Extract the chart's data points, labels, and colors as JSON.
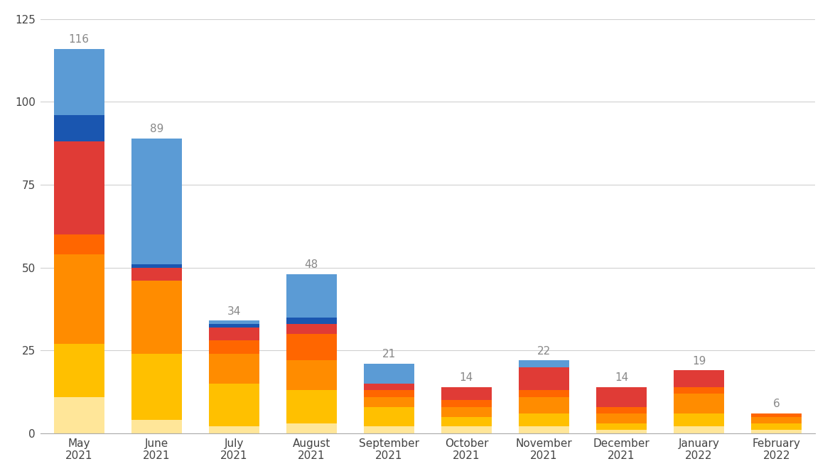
{
  "categories": [
    "May\n2021",
    "June\n2021",
    "July\n2021",
    "August\n2021",
    "September\n2021",
    "October\n2021",
    "November\n2021",
    "December\n2021",
    "January\n2022",
    "February\n2022"
  ],
  "totals": [
    116,
    89,
    34,
    48,
    21,
    14,
    22,
    14,
    19,
    6
  ],
  "segments": {
    "light_yellow": [
      11,
      4,
      2,
      3,
      2,
      2,
      2,
      1,
      2,
      1
    ],
    "yellow": [
      16,
      20,
      13,
      10,
      6,
      3,
      4,
      2,
      4,
      2
    ],
    "orange": [
      27,
      22,
      9,
      9,
      3,
      3,
      5,
      3,
      6,
      2
    ],
    "red_orange": [
      6,
      0,
      4,
      8,
      2,
      2,
      2,
      2,
      2,
      1
    ],
    "red": [
      28,
      4,
      4,
      3,
      2,
      4,
      7,
      6,
      5,
      0
    ],
    "dark_blue": [
      8,
      1,
      1,
      2,
      0,
      0,
      0,
      0,
      0,
      0
    ],
    "light_blue": [
      20,
      38,
      1,
      13,
      6,
      0,
      2,
      0,
      0,
      0
    ]
  },
  "colors": {
    "light_yellow": "#FFE699",
    "yellow": "#FFC000",
    "orange": "#FF8C00",
    "red_orange": "#FF6600",
    "red": "#E03B36",
    "dark_blue": "#1A56B0",
    "light_blue": "#5B9BD5"
  },
  "ylim": [
    0,
    125
  ],
  "yticks": [
    0,
    25,
    50,
    75,
    100,
    125
  ],
  "background_color": "#FFFFFF",
  "grid_color": "#D0D0D0",
  "label_color": "#888888",
  "bar_width": 0.65
}
